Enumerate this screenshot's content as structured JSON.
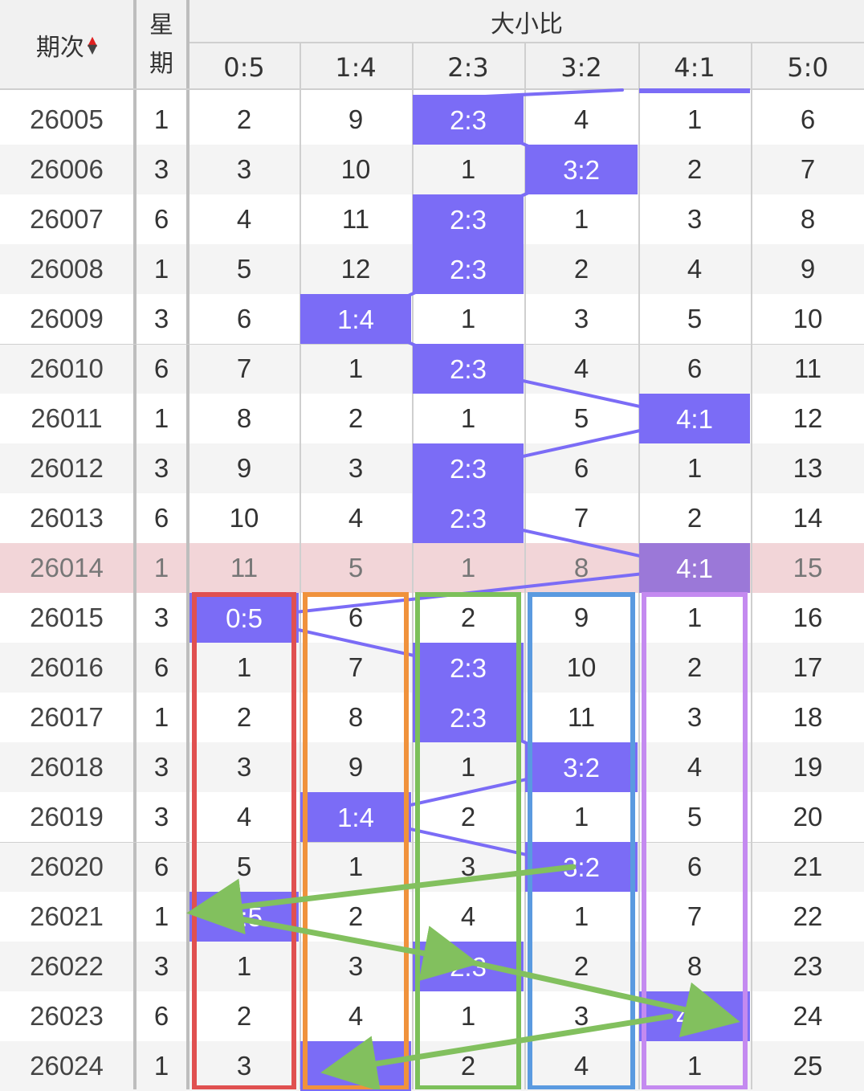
{
  "header": {
    "period_label": "期次",
    "week_label_1": "星",
    "week_label_2": "期",
    "group_label": "大小比",
    "sort_up": "▲",
    "sort_down": "▼",
    "columns": [
      "0:5",
      "1:4",
      "2:3",
      "3:2",
      "4:1",
      "5:0"
    ]
  },
  "colors": {
    "hit": "#7b6cf6",
    "highlight_row": "#f2d5d8",
    "frame_0_5": "#e05050",
    "frame_1_4": "#f0923c",
    "frame_2_3": "#7cc05a",
    "frame_3_2": "#5a9ae0",
    "frame_4_1": "#c48af0",
    "arrow": "#82c05e"
  },
  "rows": [
    {
      "id": "26005",
      "week": "1",
      "cells": [
        "2",
        "9",
        "2:3",
        "4",
        "1",
        "6"
      ],
      "hit": 2
    },
    {
      "id": "26006",
      "week": "3",
      "cells": [
        "3",
        "10",
        "1",
        "3:2",
        "2",
        "7"
      ],
      "hit": 3
    },
    {
      "id": "26007",
      "week": "6",
      "cells": [
        "4",
        "11",
        "2:3",
        "1",
        "3",
        "8"
      ],
      "hit": 2
    },
    {
      "id": "26008",
      "week": "1",
      "cells": [
        "5",
        "12",
        "2:3",
        "2",
        "4",
        "9"
      ],
      "hit": 2
    },
    {
      "id": "26009",
      "week": "3",
      "cells": [
        "6",
        "1:4",
        "1",
        "3",
        "5",
        "10"
      ],
      "hit": 1
    },
    {
      "id": "26010",
      "week": "6",
      "cells": [
        "7",
        "1",
        "2:3",
        "4",
        "6",
        "11"
      ],
      "hit": 2
    },
    {
      "id": "26011",
      "week": "1",
      "cells": [
        "8",
        "2",
        "1",
        "5",
        "4:1",
        "12"
      ],
      "hit": 4
    },
    {
      "id": "26012",
      "week": "3",
      "cells": [
        "9",
        "3",
        "2:3",
        "6",
        "1",
        "13"
      ],
      "hit": 2
    },
    {
      "id": "26013",
      "week": "6",
      "cells": [
        "10",
        "4",
        "2:3",
        "7",
        "2",
        "14"
      ],
      "hit": 2
    },
    {
      "id": "26014",
      "week": "1",
      "cells": [
        "11",
        "5",
        "1",
        "8",
        "4:1",
        "15"
      ],
      "hit": 4,
      "highlight": true
    },
    {
      "id": "26015",
      "week": "3",
      "cells": [
        "0:5",
        "6",
        "2",
        "9",
        "1",
        "16"
      ],
      "hit": 0
    },
    {
      "id": "26016",
      "week": "6",
      "cells": [
        "1",
        "7",
        "2:3",
        "10",
        "2",
        "17"
      ],
      "hit": 2
    },
    {
      "id": "26017",
      "week": "1",
      "cells": [
        "2",
        "8",
        "2:3",
        "11",
        "3",
        "18"
      ],
      "hit": 2
    },
    {
      "id": "26018",
      "week": "3",
      "cells": [
        "3",
        "9",
        "1",
        "3:2",
        "4",
        "19"
      ],
      "hit": 3
    },
    {
      "id": "26019",
      "week": "3",
      "cells": [
        "4",
        "1:4",
        "2",
        "1",
        "5",
        "20"
      ],
      "hit": 1
    },
    {
      "id": "26020",
      "week": "6",
      "cells": [
        "5",
        "1",
        "3",
        "3:2",
        "6",
        "21"
      ],
      "hit": 3
    },
    {
      "id": "26021",
      "week": "1",
      "cells": [
        "0:5",
        "2",
        "4",
        "1",
        "7",
        "22"
      ],
      "hit": 0
    },
    {
      "id": "26022",
      "week": "3",
      "cells": [
        "1",
        "3",
        "2:3",
        "2",
        "8",
        "23"
      ],
      "hit": 2
    },
    {
      "id": "26023",
      "week": "6",
      "cells": [
        "2",
        "4",
        "1",
        "3",
        "4:1",
        "24"
      ],
      "hit": 4
    },
    {
      "id": "26024",
      "week": "1",
      "cells": [
        "3",
        "1:4",
        "2",
        "4",
        "1",
        "25"
      ],
      "hit": 1
    }
  ]
}
